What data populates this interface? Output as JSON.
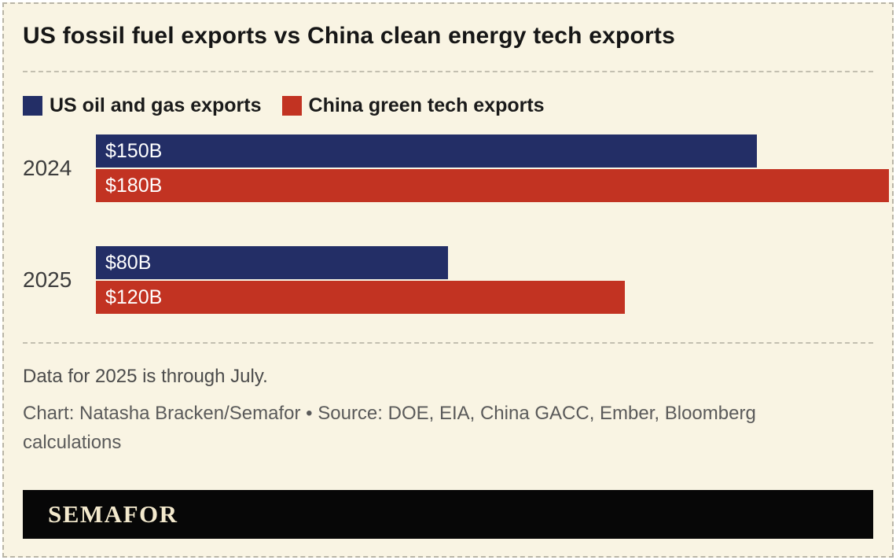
{
  "chart_data": {
    "type": "bar",
    "title": "US fossil fuel exports vs China clean energy tech exports",
    "orientation": "horizontal",
    "categories": [
      "2024",
      "2025"
    ],
    "series": [
      {
        "name": "US oil and gas exports",
        "color": "#232e66",
        "values": [
          150,
          80
        ],
        "labels": [
          "$150B",
          "$80B"
        ]
      },
      {
        "name": "China green tech exports",
        "color": "#c23322",
        "values": [
          180,
          120
        ],
        "labels": [
          "$180B",
          "$120B"
        ]
      }
    ],
    "xlim": [
      0,
      180
    ],
    "value_unit": "billion USD",
    "legend_position": "top",
    "grid": false,
    "note": "Data for 2025 is through July.",
    "credit": "Chart: Natasha Bracken/Semafor • Source: DOE, EIA, China GACC, Ember, Bloomberg calculations",
    "brand": "SEMAFOR"
  }
}
